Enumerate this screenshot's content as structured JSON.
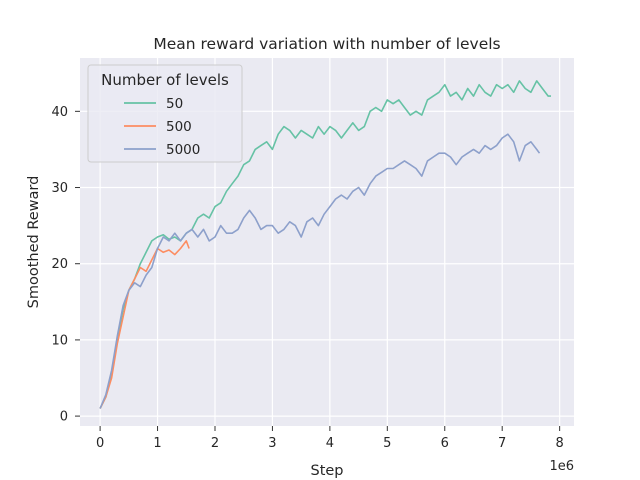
{
  "chart_data": {
    "type": "line",
    "title": "Mean reward variation with number of levels",
    "xlabel": "Step",
    "ylabel": "Smoothed Reward",
    "x_offset_label": "1e6",
    "xlim": [
      -0.35,
      8.25
    ],
    "ylim": [
      -1.3,
      47
    ],
    "x_ticks": [
      0,
      1,
      2,
      3,
      4,
      5,
      6,
      7,
      8
    ],
    "y_ticks": [
      0,
      10,
      20,
      30,
      40
    ],
    "grid": true,
    "background": "#eaeaf2",
    "legend": {
      "title": "Number of levels",
      "position": "upper-left"
    },
    "series": [
      {
        "name": "50",
        "color": "#66c2a5",
        "x": [
          0.0,
          0.1,
          0.2,
          0.3,
          0.4,
          0.5,
          0.6,
          0.7,
          0.8,
          0.9,
          1.0,
          1.1,
          1.2,
          1.3,
          1.4,
          1.5,
          1.6,
          1.7,
          1.8,
          1.9,
          2.0,
          2.1,
          2.2,
          2.3,
          2.4,
          2.5,
          2.6,
          2.7,
          2.8,
          2.9,
          3.0,
          3.1,
          3.2,
          3.3,
          3.4,
          3.5,
          3.6,
          3.7,
          3.8,
          3.9,
          4.0,
          4.1,
          4.2,
          4.3,
          4.4,
          4.5,
          4.6,
          4.7,
          4.8,
          4.9,
          5.0,
          5.1,
          5.2,
          5.3,
          5.4,
          5.5,
          5.6,
          5.7,
          5.8,
          5.9,
          6.0,
          6.1,
          6.2,
          6.3,
          6.4,
          6.5,
          6.6,
          6.7,
          6.8,
          6.9,
          7.0,
          7.1,
          7.2,
          7.3,
          7.4,
          7.5,
          7.6,
          7.7,
          7.8,
          7.85
        ],
        "values": [
          1.0,
          2.5,
          5.5,
          10.0,
          14.0,
          16.5,
          18.0,
          20.0,
          21.5,
          23.0,
          23.5,
          23.8,
          23.2,
          23.5,
          23.0,
          24.0,
          24.5,
          26.0,
          26.5,
          26.0,
          27.5,
          28.0,
          29.5,
          30.5,
          31.5,
          33.0,
          33.5,
          35.0,
          35.5,
          36.0,
          35.0,
          37.0,
          38.0,
          37.5,
          36.5,
          37.5,
          37.0,
          36.5,
          38.0,
          37.0,
          38.0,
          37.5,
          36.5,
          37.5,
          38.5,
          37.5,
          38.0,
          40.0,
          40.5,
          40.0,
          41.5,
          41.0,
          41.5,
          40.5,
          39.5,
          40.0,
          39.5,
          41.5,
          42.0,
          42.5,
          43.5,
          42.0,
          42.5,
          41.5,
          43.0,
          42.0,
          43.5,
          42.5,
          42.0,
          43.5,
          43.0,
          43.5,
          42.5,
          44.0,
          43.0,
          42.5,
          44.0,
          43.0,
          42.0,
          42.0
        ]
      },
      {
        "name": "500",
        "color": "#fc8d62",
        "x": [
          0.0,
          0.1,
          0.2,
          0.3,
          0.4,
          0.5,
          0.6,
          0.7,
          0.8,
          0.9,
          1.0,
          1.1,
          1.2,
          1.3,
          1.4,
          1.5,
          1.55
        ],
        "values": [
          1.0,
          2.5,
          5.0,
          9.5,
          13.0,
          16.5,
          18.0,
          19.5,
          19.0,
          20.5,
          22.0,
          21.5,
          21.8,
          21.2,
          22.0,
          23.0,
          22.0
        ]
      },
      {
        "name": "5000",
        "color": "#8da0cb",
        "x": [
          0.0,
          0.1,
          0.2,
          0.3,
          0.4,
          0.5,
          0.6,
          0.7,
          0.8,
          0.9,
          1.0,
          1.1,
          1.2,
          1.3,
          1.4,
          1.5,
          1.6,
          1.7,
          1.8,
          1.9,
          2.0,
          2.1,
          2.2,
          2.3,
          2.4,
          2.5,
          2.6,
          2.7,
          2.8,
          2.9,
          3.0,
          3.1,
          3.2,
          3.3,
          3.4,
          3.5,
          3.6,
          3.7,
          3.8,
          3.9,
          4.0,
          4.1,
          4.2,
          4.3,
          4.4,
          4.5,
          4.6,
          4.7,
          4.8,
          4.9,
          5.0,
          5.1,
          5.2,
          5.3,
          5.4,
          5.5,
          5.6,
          5.7,
          5.8,
          5.9,
          6.0,
          6.1,
          6.2,
          6.3,
          6.4,
          6.5,
          6.6,
          6.7,
          6.8,
          6.9,
          7.0,
          7.1,
          7.2,
          7.3,
          7.4,
          7.5,
          7.6,
          7.65
        ],
        "values": [
          1.0,
          2.8,
          6.0,
          10.5,
          14.5,
          16.5,
          17.5,
          17.0,
          18.5,
          19.5,
          22.0,
          23.5,
          23.0,
          24.0,
          23.0,
          24.0,
          24.5,
          23.5,
          24.5,
          23.0,
          23.5,
          25.0,
          24.0,
          24.0,
          24.5,
          26.0,
          27.0,
          26.0,
          24.5,
          25.0,
          25.0,
          24.0,
          24.5,
          25.5,
          25.0,
          23.5,
          25.5,
          26.0,
          25.0,
          26.5,
          27.5,
          28.5,
          29.0,
          28.5,
          29.5,
          30.0,
          29.0,
          30.5,
          31.5,
          32.0,
          32.5,
          32.5,
          33.0,
          33.5,
          33.0,
          32.5,
          31.5,
          33.5,
          34.0,
          34.5,
          34.5,
          34.0,
          33.0,
          34.0,
          34.5,
          35.0,
          34.5,
          35.5,
          35.0,
          35.5,
          36.5,
          37.0,
          36.0,
          33.5,
          35.5,
          36.0,
          35.0,
          34.5
        ]
      }
    ]
  }
}
